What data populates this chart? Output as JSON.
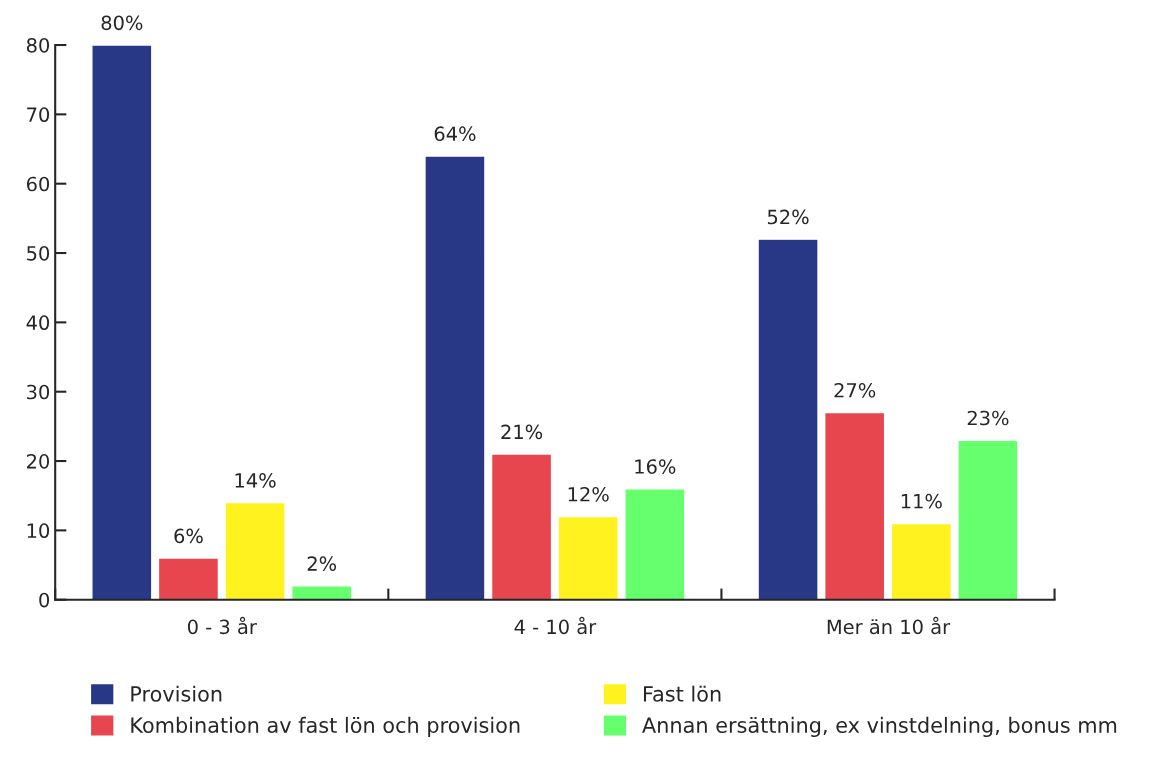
{
  "chart_data": {
    "type": "bar",
    "categories": [
      "0 - 3 år",
      "4 - 10 år",
      "Mer än 10 år"
    ],
    "series": [
      {
        "name": "Provision",
        "color": "#283886",
        "values": [
          80,
          64,
          52
        ],
        "value_labels": [
          "80%",
          "64%",
          "52%"
        ]
      },
      {
        "name": "Kombination av fast lön och provision",
        "color": "#e8464f",
        "values": [
          6,
          21,
          27
        ],
        "value_labels": [
          "6%",
          "21%",
          "27%"
        ]
      },
      {
        "name": "Fast lön",
        "color": "#fff21f",
        "values": [
          14,
          12,
          11
        ],
        "value_labels": [
          "14%",
          "12%",
          "11%"
        ]
      },
      {
        "name": "Annan ersättning, ex vinstdelning, bonus mm",
        "color": "#66ff6e",
        "values": [
          2,
          16,
          23
        ],
        "value_labels": [
          "2%",
          "16%",
          "23%"
        ]
      }
    ],
    "ylim": [
      0,
      80
    ],
    "yticks": [
      0,
      10,
      20,
      30,
      40,
      50,
      60,
      70,
      80
    ],
    "grid": false,
    "legend": "bottom"
  }
}
